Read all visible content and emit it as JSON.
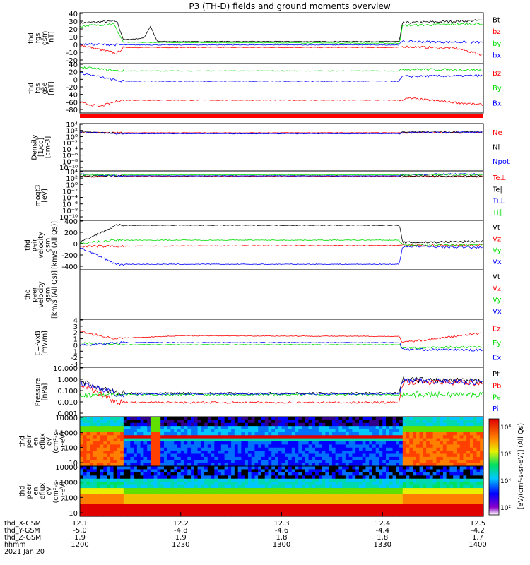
{
  "title": "P3 (TH-D) fields and ground moments overview",
  "colors": {
    "black": "#000000",
    "red": "#ff0000",
    "green": "#00dd00",
    "blue": "#0000ff"
  },
  "chart_data": {
    "type": "line",
    "x": {
      "rows": [
        {
          "label": "thd_X-GSM",
          "values": [
            "12.1",
            "12.2",
            "12.3",
            "12.4",
            "12.5"
          ]
        },
        {
          "label": "thd_Y-GSM",
          "values": [
            "-5.0",
            "-4.8",
            "-4.6",
            "-4.4",
            "-4.2"
          ]
        },
        {
          "label": "thd_Z-GSM",
          "values": [
            "1.9",
            "1.9",
            "1.8",
            "1.8",
            "1.7"
          ]
        },
        {
          "label": "hhmm",
          "values": [
            "1200",
            "1230",
            "1300",
            "1330",
            "1400"
          ]
        }
      ],
      "date": "2021 Jan 20",
      "range_minutes": [
        0,
        120
      ]
    },
    "panels": [
      {
        "id": "fgs-gsm",
        "ylabel": [
          "thd",
          "fgs",
          "gsm",
          "[nT]"
        ],
        "ticks": [
          "40",
          "30",
          "20",
          "10",
          "0",
          "-10",
          "-20"
        ],
        "yrange": [
          -20,
          40
        ],
        "scale": "linear",
        "series": [
          {
            "name": "Bt",
            "color": "black",
            "segments": [
              [
                0,
                28
              ],
              [
                11,
                30
              ],
              [
                13,
                8
              ],
              [
                19,
                10
              ],
              [
                21,
                24
              ],
              [
                23,
                6
              ],
              [
                95,
                6
              ],
              [
                96,
                28
              ],
              [
                120,
                31
              ]
            ]
          },
          {
            "name": "bz",
            "color": "red",
            "segments": [
              [
                0,
                2
              ],
              [
                11,
                -8
              ],
              [
                13,
                -1
              ],
              [
                95,
                -1
              ],
              [
                96,
                0
              ],
              [
                112,
                -2
              ],
              [
                120,
                -10
              ]
            ]
          },
          {
            "name": "by",
            "color": "green",
            "segments": [
              [
                0,
                24
              ],
              [
                10,
                27
              ],
              [
                13,
                5
              ],
              [
                95,
                4
              ],
              [
                96,
                25
              ],
              [
                120,
                27
              ]
            ]
          },
          {
            "name": "bx",
            "color": "blue",
            "segments": [
              [
                0,
                3
              ],
              [
                13,
                2
              ],
              [
                95,
                2
              ],
              [
                96,
                6
              ],
              [
                120,
                5
              ]
            ]
          }
        ]
      },
      {
        "id": "fgs-gse",
        "ylabel": [
          "thd",
          "fgs",
          "gse",
          "[nT]"
        ],
        "ticks": [
          "40",
          "20",
          "0",
          "-20",
          "-40",
          "-60",
          "-80"
        ],
        "yrange": [
          -90,
          45
        ],
        "scale": "linear",
        "series": [
          {
            "name": "Bz",
            "color": "red",
            "segments": [
              [
                0,
                -62
              ],
              [
                6,
                -72
              ],
              [
                12,
                -55
              ],
              [
                95,
                -55
              ],
              [
                98,
                -50
              ],
              [
                120,
                -68
              ]
            ]
          },
          {
            "name": "By",
            "color": "green",
            "segments": [
              [
                0,
                35
              ],
              [
                12,
                25
              ],
              [
                95,
                25
              ],
              [
                96,
                30
              ],
              [
                120,
                27
              ]
            ]
          },
          {
            "name": "Bx",
            "color": "blue",
            "segments": [
              [
                0,
                20
              ],
              [
                12,
                -3
              ],
              [
                95,
                -3
              ],
              [
                96,
                10
              ],
              [
                120,
                12
              ]
            ]
          }
        ]
      },
      {
        "id": "density",
        "ylabel": [
          "Density",
          "[1/cc]",
          "[cm-3]"
        ],
        "ticks": [
          "10⁴",
          "10²",
          "10⁰",
          "10⁻²",
          "10⁻⁴",
          "10⁻⁶",
          "10⁻⁸",
          "10⁻¹⁰"
        ],
        "yrange": [
          -10,
          4
        ],
        "scale": "log",
        "series": [
          {
            "name": "Ne",
            "color": "red",
            "segments": [
              [
                0,
                1.3
              ],
              [
                120,
                1.3
              ]
            ]
          },
          {
            "name": "Ni",
            "color": "black",
            "segments": [
              [
                0,
                1.6
              ],
              [
                12,
                1.1
              ],
              [
                95,
                1.1
              ],
              [
                96,
                1.5
              ],
              [
                120,
                1.6
              ]
            ]
          },
          {
            "name": "Npot",
            "color": "blue",
            "segments": [
              [
                0,
                1.4
              ],
              [
                12,
                1.0
              ],
              [
                95,
                1.0
              ],
              [
                96,
                1.3
              ],
              [
                120,
                1.4
              ]
            ]
          }
        ]
      },
      {
        "id": "temperature",
        "ylabel": [
          "moqt3",
          "[eV]"
        ],
        "ticks": [
          "10⁴",
          "10²",
          "10⁰",
          "10⁻²",
          "10⁻⁴",
          "10⁻⁶",
          "10⁻⁸",
          "10⁻¹⁰"
        ],
        "yrange": [
          -10,
          4
        ],
        "scale": "log",
        "series": [
          {
            "name": "Te⊥",
            "color": "red",
            "segments": [
              [
                0,
                2.4
              ],
              [
                120,
                2.4
              ]
            ]
          },
          {
            "name": "Te∥",
            "color": "black",
            "segments": [
              [
                0,
                2.6
              ],
              [
                120,
                2.6
              ]
            ]
          },
          {
            "name": "Ti⊥",
            "color": "blue",
            "segments": [
              [
                0,
                3.1
              ],
              [
                12,
                2.6
              ],
              [
                95,
                2.6
              ],
              [
                96,
                3.0
              ],
              [
                120,
                3.1
              ]
            ]
          },
          {
            "name": "Ti∥",
            "color": "green",
            "segments": [
              [
                0,
                2.9
              ],
              [
                12,
                2.9
              ],
              [
                95,
                2.9
              ],
              [
                120,
                3.0
              ]
            ]
          }
        ]
      },
      {
        "id": "peir-velocity",
        "ylabel": [
          "thd",
          "peir",
          "velocity",
          "gsm",
          "[km/s (All Qs)]"
        ],
        "ticks": [
          "400",
          "200",
          "0",
          "-200",
          "-400"
        ],
        "yrange": [
          -400,
          400
        ],
        "scale": "linear",
        "series": [
          {
            "name": "Vt",
            "color": "black",
            "segments": [
              [
                0,
                50
              ],
              [
                11,
                320
              ],
              [
                95,
                320
              ],
              [
                96,
                40
              ],
              [
                120,
                60
              ]
            ]
          },
          {
            "name": "Vz",
            "color": "red",
            "segments": [
              [
                0,
                -20
              ],
              [
                120,
                -5
              ]
            ]
          },
          {
            "name": "Vy",
            "color": "green",
            "segments": [
              [
                0,
                30
              ],
              [
                11,
                80
              ],
              [
                95,
                80
              ],
              [
                96,
                0
              ],
              [
                120,
                10
              ]
            ]
          },
          {
            "name": "Vx",
            "color": "blue",
            "segments": [
              [
                0,
                -40
              ],
              [
                11,
                -310
              ],
              [
                95,
                -310
              ],
              [
                96,
                -20
              ],
              [
                120,
                -40
              ]
            ]
          }
        ]
      },
      {
        "id": "peer-velocity",
        "ylabel": [
          "thd",
          "peer",
          "velocity",
          "gsm",
          "[km/s (All Qs)]"
        ],
        "ticks": [],
        "yrange": [
          0,
          1
        ],
        "scale": "linear",
        "series": [
          {
            "name": "Vt",
            "color": "black"
          },
          {
            "name": "Vz",
            "color": "red"
          },
          {
            "name": "Vy",
            "color": "green"
          },
          {
            "name": "Vx",
            "color": "blue"
          }
        ]
      },
      {
        "id": "efield",
        "ylabel": [
          "E=-VxB",
          "[mV/m]"
        ],
        "ticks": [
          "4",
          "3",
          "2",
          "1",
          "0",
          "-1",
          "-2",
          "-3"
        ],
        "yrange": [
          -3,
          4
        ],
        "scale": "linear",
        "series": [
          {
            "name": "Ez",
            "color": "red",
            "segments": [
              [
                0,
                2.2
              ],
              [
                10,
                1.2
              ],
              [
                30,
                1.6
              ],
              [
                95,
                1.5
              ],
              [
                96,
                0.6
              ],
              [
                120,
                2.0
              ]
            ]
          },
          {
            "name": "Ey",
            "color": "green",
            "segments": [
              [
                0,
                0.6
              ],
              [
                12,
                0.3
              ],
              [
                95,
                0.3
              ],
              [
                96,
                -0.2
              ],
              [
                120,
                0
              ]
            ]
          },
          {
            "name": "Ex",
            "color": "blue",
            "segments": [
              [
                0,
                0.2
              ],
              [
                12,
                0.6
              ],
              [
                95,
                0.6
              ],
              [
                96,
                -0.4
              ],
              [
                120,
                -0.5
              ]
            ]
          }
        ]
      },
      {
        "id": "pressure",
        "ylabel": [
          "Pressure",
          "[nPa]"
        ],
        "ticks": [
          "10.000",
          "1.000",
          "0.100",
          "0.010",
          "0.001"
        ],
        "yrange": [
          -3,
          1
        ],
        "scale": "log",
        "series": [
          {
            "name": "Pt",
            "color": "black",
            "segments": [
              [
                0,
                -0.1
              ],
              [
                11,
                -1.1
              ],
              [
                95,
                -1.1
              ],
              [
                96,
                0
              ],
              [
                120,
                -0.15
              ]
            ]
          },
          {
            "name": "Pb",
            "color": "red",
            "segments": [
              [
                0,
                -0.3
              ],
              [
                11,
                -1.85
              ],
              [
                95,
                -1.85
              ],
              [
                96,
                -0.2
              ],
              [
                120,
                -0.25
              ]
            ]
          },
          {
            "name": "Pe",
            "color": "green",
            "segments": [
              [
                0,
                -1.2
              ],
              [
                120,
                -1.2
              ]
            ]
          },
          {
            "name": "Pi",
            "color": "blue",
            "segments": [
              [
                0,
                -0.2
              ],
              [
                11,
                -1.15
              ],
              [
                95,
                -1.15
              ],
              [
                96,
                -0.1
              ],
              [
                120,
                -0.2
              ]
            ]
          }
        ]
      },
      {
        "id": "peir-spec",
        "ylabel": [
          "thd",
          "peir",
          "en",
          "eflux",
          "eV",
          "(cm²-s-",
          "sr-eV)"
        ],
        "ticks": [
          "10000",
          "1000",
          "100",
          "10"
        ],
        "scale": "log",
        "type": "heatmap"
      },
      {
        "id": "peer-spec",
        "ylabel": [
          "thd",
          "peer",
          "en",
          "eflux",
          "eV",
          "(cm²-s-",
          "sr-eV)"
        ],
        "ticks": [
          "10000",
          "1000",
          "100",
          "10"
        ],
        "scale": "log",
        "type": "heatmap"
      }
    ],
    "colorbar": {
      "ticks": [
        "10⁸",
        "10⁶",
        "10⁴",
        "10²"
      ],
      "label": "[eV/(cm²-s-sr-eV)] (All Qs)"
    }
  }
}
